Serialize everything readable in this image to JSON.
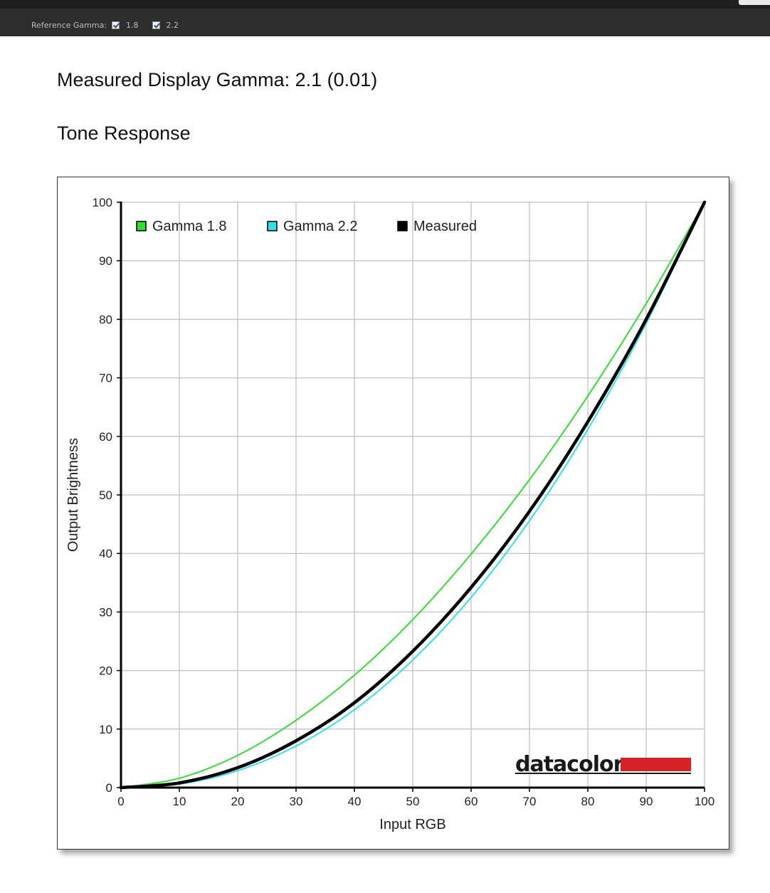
{
  "toolbar": {
    "reference_gamma_label": "Reference Gamma:",
    "options": [
      {
        "label": "1.8",
        "checked": true
      },
      {
        "label": "2.2",
        "checked": true
      }
    ]
  },
  "headings": {
    "measured_gamma": "Measured Display Gamma: 2.1 (0.01)",
    "tone_response": "Tone Response"
  },
  "chart_data": {
    "type": "line",
    "xlabel": "Input RGB",
    "ylabel": "Output Brightness",
    "xlim": [
      0,
      100
    ],
    "ylim": [
      0,
      100
    ],
    "x_ticks": [
      "0",
      "10",
      "20",
      "30",
      "40",
      "50",
      "60",
      "70",
      "80",
      "90",
      "100"
    ],
    "y_ticks": [
      "0",
      "10",
      "20",
      "30",
      "40",
      "50",
      "60",
      "70",
      "80",
      "90",
      "100"
    ],
    "grid": true,
    "legend_position": "top-left",
    "x": [
      0,
      10,
      20,
      30,
      40,
      50,
      60,
      70,
      80,
      90,
      100
    ],
    "series": [
      {
        "name": "Gamma 1.8",
        "color": "#33dd33",
        "values": [
          0,
          1.6,
          5.5,
          11.5,
          19.2,
          28.7,
          39.9,
          52.6,
          66.9,
          82.7,
          100
        ]
      },
      {
        "name": "Gamma 2.2",
        "color": "#33e0e8",
        "values": [
          0,
          0.6,
          2.9,
          7.1,
          13.3,
          21.8,
          32.5,
          45.6,
          61.2,
          79.3,
          100
        ]
      },
      {
        "name": "Measured",
        "color": "#000000",
        "values": [
          0,
          0.8,
          3.4,
          8.0,
          14.5,
          23.3,
          34.2,
          47.2,
          62.5,
          80.0,
          100
        ]
      }
    ],
    "logo_text": "datacolor",
    "logo_color": "#d42027"
  }
}
